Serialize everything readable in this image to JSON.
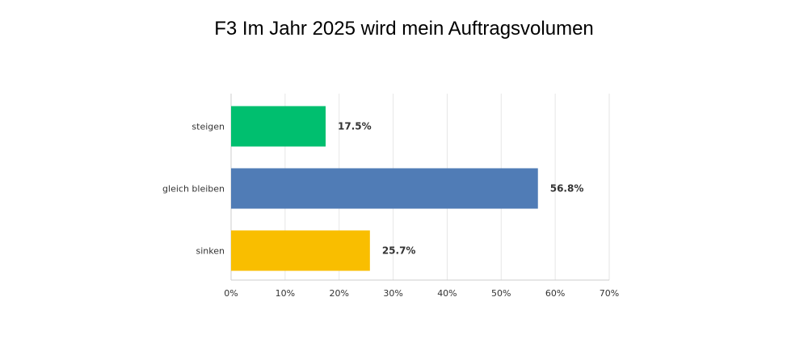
{
  "chart_data": {
    "type": "bar",
    "orientation": "horizontal",
    "title": "F3 Im Jahr 2025 wird mein Auftragsvolumen",
    "categories": [
      "steigen",
      "gleich bleiben",
      "sinken"
    ],
    "values": [
      17.5,
      56.8,
      25.7
    ],
    "value_labels": [
      "17.5%",
      "56.8%",
      "25.7%"
    ],
    "colors": [
      "#00BF6F",
      "#507CB6",
      "#F9BE00"
    ],
    "xlim": [
      0,
      70
    ],
    "xticks": [
      "0%",
      "10%",
      "20%",
      "30%",
      "40%",
      "50%",
      "60%",
      "70%"
    ],
    "grid": true
  }
}
